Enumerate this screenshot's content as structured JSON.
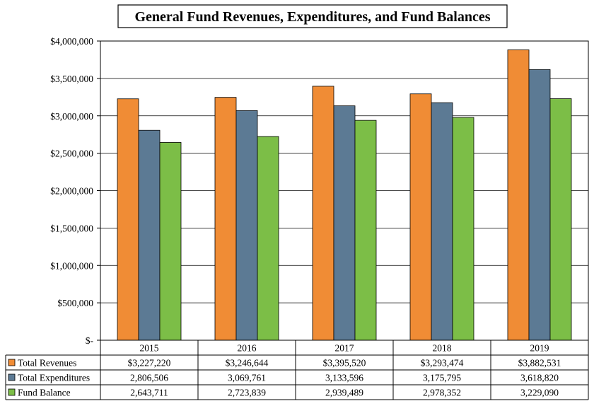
{
  "chart_data": {
    "type": "bar",
    "title": "General Fund Revenues, Expenditures, and Fund Balances",
    "categories": [
      "2015",
      "2016",
      "2017",
      "2018",
      "2019"
    ],
    "series": [
      {
        "name": "Total Revenues",
        "color": "#F08C35",
        "values": [
          3227220,
          3246644,
          3395520,
          3293474,
          3882531
        ],
        "labels": [
          "$3,227,220",
          "$3,246,644",
          "$3,395,520",
          "$3,293,474",
          "$3,882,531"
        ]
      },
      {
        "name": "Total Expenditures",
        "color": "#5C7A94",
        "values": [
          2806506,
          3069761,
          3133596,
          3175795,
          3618820
        ],
        "labels": [
          "2,806,506",
          "3,069,761",
          "3,133,596",
          "3,175,795",
          "3,618,820"
        ]
      },
      {
        "name": "Fund Balance",
        "color": "#7CBE47",
        "values": [
          2643711,
          2723839,
          2939489,
          2978352,
          3229090
        ],
        "labels": [
          "2,643,711",
          "2,723,839",
          "2,939,489",
          "2,978,352",
          "3,229,090"
        ]
      }
    ],
    "ylim": [
      0,
      4000000
    ],
    "yticks": [
      0,
      500000,
      1000000,
      1500000,
      2000000,
      2500000,
      3000000,
      3500000,
      4000000
    ],
    "ytick_labels": [
      "$-",
      "$500,000",
      "$1,000,000",
      "$1,500,000",
      "$2,000,000",
      "$2,500,000",
      "$3,000,000",
      "$3,500,000",
      "$4,000,000"
    ],
    "grid": true,
    "xlabel": "",
    "ylabel": "",
    "legend": "data-table-below"
  }
}
